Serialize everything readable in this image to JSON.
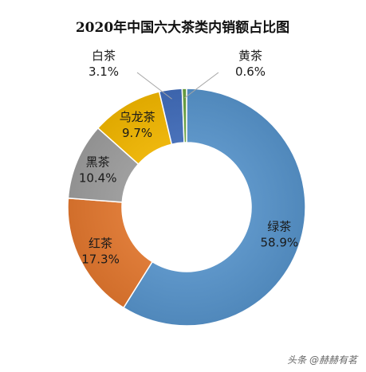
{
  "chart_data": {
    "type": "pie",
    "title": "2020年中国六大茶类内销额占比图",
    "unit": "%",
    "categories": [
      "绿茶",
      "红茶",
      "黑茶",
      "乌龙茶",
      "白茶",
      "黄茶"
    ],
    "values": [
      58.9,
      17.3,
      10.4,
      9.7,
      3.1,
      0.6
    ],
    "value_labels": [
      "58.9%",
      "17.3%",
      "10.4%",
      "9.7%",
      "3.1%",
      "0.6%"
    ],
    "colors": [
      "#5b9bd5",
      "#ed7d31",
      "#a5a5a5",
      "#ffc000",
      "#4472c4",
      "#70ad47"
    ],
    "legend": "none",
    "donut": true
  },
  "watermark": "头条 @赫赫有茗"
}
